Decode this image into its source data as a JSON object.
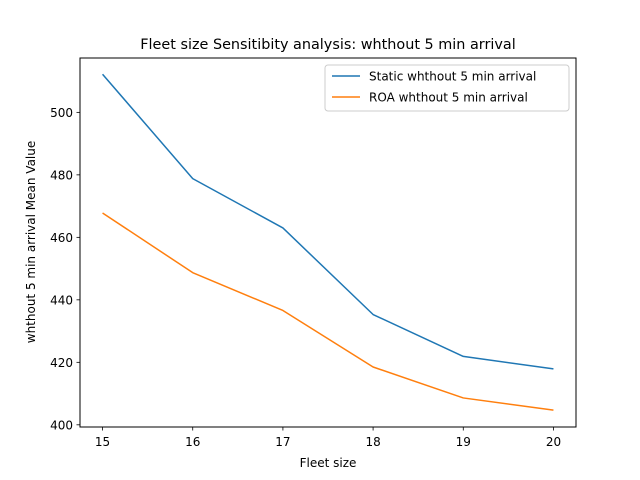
{
  "chart_data": {
    "type": "line",
    "title": "Fleet size Sensitibity analysis: whthout 5 min arrival",
    "xlabel": "Fleet size",
    "ylabel": "whthout 5 min arrival Mean Value",
    "x": [
      15,
      16,
      17,
      18,
      19,
      20
    ],
    "xticks": [
      15,
      16,
      17,
      18,
      19,
      20
    ],
    "yticks": [
      400,
      420,
      440,
      460,
      480,
      500
    ],
    "xlim": [
      14.75,
      20.25
    ],
    "ylim": [
      399.3,
      517.4
    ],
    "grid": false,
    "legend_position": "top-right",
    "series": [
      {
        "name": "Static whthout 5 min arrival",
        "color": "#1f77b4",
        "values": [
          512.2,
          478.8,
          463.0,
          435.3,
          421.9,
          417.9
        ]
      },
      {
        "name": "ROA whthout 5 min arrival",
        "color": "#ff7f0e",
        "values": [
          467.8,
          448.7,
          436.6,
          418.5,
          408.6,
          404.7
        ]
      }
    ]
  }
}
